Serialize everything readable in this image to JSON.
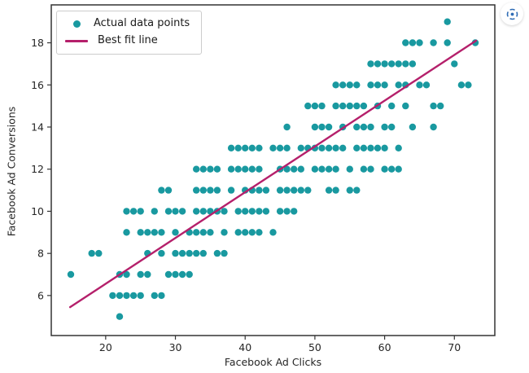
{
  "chart_data": {
    "type": "scatter",
    "title": "",
    "xlabel": "Facebook Ad Clicks",
    "ylabel": "Facebook Ad Conversions",
    "xlim": [
      12.2,
      75.8
    ],
    "ylim": [
      4.1,
      19.8
    ],
    "xticks": [
      20,
      30,
      40,
      50,
      60,
      70
    ],
    "yticks": [
      6,
      8,
      10,
      12,
      14,
      16,
      18
    ],
    "grid": false,
    "legend_position": "upper-left",
    "series": [
      {
        "name": "Actual data points",
        "type": "scatter",
        "color": "#1999A0",
        "points": [
          [
            22,
            5
          ],
          [
            21,
            6
          ],
          [
            22,
            6
          ],
          [
            23,
            6
          ],
          [
            24,
            6
          ],
          [
            25,
            6
          ],
          [
            27,
            6
          ],
          [
            28,
            6
          ],
          [
            15,
            7
          ],
          [
            22,
            7
          ],
          [
            23,
            7
          ],
          [
            25,
            7
          ],
          [
            26,
            7
          ],
          [
            29,
            7
          ],
          [
            30,
            7
          ],
          [
            31,
            7
          ],
          [
            32,
            7
          ],
          [
            18,
            8
          ],
          [
            19,
            8
          ],
          [
            26,
            8
          ],
          [
            28,
            8
          ],
          [
            30,
            8
          ],
          [
            31,
            8
          ],
          [
            32,
            8
          ],
          [
            33,
            8
          ],
          [
            34,
            8
          ],
          [
            36,
            8
          ],
          [
            37,
            8
          ],
          [
            23,
            9
          ],
          [
            25,
            9
          ],
          [
            26,
            9
          ],
          [
            27,
            9
          ],
          [
            28,
            9
          ],
          [
            30,
            9
          ],
          [
            32,
            9
          ],
          [
            33,
            9
          ],
          [
            34,
            9
          ],
          [
            35,
            9
          ],
          [
            37,
            9
          ],
          [
            39,
            9
          ],
          [
            40,
            9
          ],
          [
            41,
            9
          ],
          [
            42,
            9
          ],
          [
            44,
            9
          ],
          [
            23,
            10
          ],
          [
            24,
            10
          ],
          [
            25,
            10
          ],
          [
            27,
            10
          ],
          [
            29,
            10
          ],
          [
            30,
            10
          ],
          [
            31,
            10
          ],
          [
            33,
            10
          ],
          [
            34,
            10
          ],
          [
            35,
            10
          ],
          [
            36,
            10
          ],
          [
            37,
            10
          ],
          [
            39,
            10
          ],
          [
            40,
            10
          ],
          [
            41,
            10
          ],
          [
            42,
            10
          ],
          [
            43,
            10
          ],
          [
            45,
            10
          ],
          [
            46,
            10
          ],
          [
            47,
            10
          ],
          [
            28,
            11
          ],
          [
            29,
            11
          ],
          [
            33,
            11
          ],
          [
            34,
            11
          ],
          [
            35,
            11
          ],
          [
            36,
            11
          ],
          [
            38,
            11
          ],
          [
            40,
            11
          ],
          [
            41,
            11
          ],
          [
            42,
            11
          ],
          [
            43,
            11
          ],
          [
            45,
            11
          ],
          [
            46,
            11
          ],
          [
            47,
            11
          ],
          [
            48,
            11
          ],
          [
            49,
            11
          ],
          [
            52,
            11
          ],
          [
            53,
            11
          ],
          [
            55,
            11
          ],
          [
            56,
            11
          ],
          [
            33,
            12
          ],
          [
            34,
            12
          ],
          [
            35,
            12
          ],
          [
            36,
            12
          ],
          [
            38,
            12
          ],
          [
            39,
            12
          ],
          [
            40,
            12
          ],
          [
            41,
            12
          ],
          [
            42,
            12
          ],
          [
            45,
            12
          ],
          [
            46,
            12
          ],
          [
            47,
            12
          ],
          [
            48,
            12
          ],
          [
            50,
            12
          ],
          [
            51,
            12
          ],
          [
            52,
            12
          ],
          [
            53,
            12
          ],
          [
            55,
            12
          ],
          [
            57,
            12
          ],
          [
            58,
            12
          ],
          [
            60,
            12
          ],
          [
            61,
            12
          ],
          [
            62,
            12
          ],
          [
            38,
            13
          ],
          [
            39,
            13
          ],
          [
            40,
            13
          ],
          [
            41,
            13
          ],
          [
            42,
            13
          ],
          [
            44,
            13
          ],
          [
            45,
            13
          ],
          [
            46,
            13
          ],
          [
            48,
            13
          ],
          [
            49,
            13
          ],
          [
            50,
            13
          ],
          [
            51,
            13
          ],
          [
            52,
            13
          ],
          [
            53,
            13
          ],
          [
            54,
            13
          ],
          [
            56,
            13
          ],
          [
            57,
            13
          ],
          [
            58,
            13
          ],
          [
            59,
            13
          ],
          [
            60,
            13
          ],
          [
            62,
            13
          ],
          [
            46,
            14
          ],
          [
            50,
            14
          ],
          [
            51,
            14
          ],
          [
            52,
            14
          ],
          [
            54,
            14
          ],
          [
            56,
            14
          ],
          [
            57,
            14
          ],
          [
            58,
            14
          ],
          [
            60,
            14
          ],
          [
            61,
            14
          ],
          [
            64,
            14
          ],
          [
            67,
            14
          ],
          [
            49,
            15
          ],
          [
            50,
            15
          ],
          [
            51,
            15
          ],
          [
            53,
            15
          ],
          [
            54,
            15
          ],
          [
            55,
            15
          ],
          [
            56,
            15
          ],
          [
            57,
            15
          ],
          [
            59,
            15
          ],
          [
            61,
            15
          ],
          [
            63,
            15
          ],
          [
            67,
            15
          ],
          [
            68,
            15
          ],
          [
            53,
            16
          ],
          [
            54,
            16
          ],
          [
            55,
            16
          ],
          [
            56,
            16
          ],
          [
            58,
            16
          ],
          [
            59,
            16
          ],
          [
            60,
            16
          ],
          [
            62,
            16
          ],
          [
            63,
            16
          ],
          [
            65,
            16
          ],
          [
            66,
            16
          ],
          [
            71,
            16
          ],
          [
            72,
            16
          ],
          [
            58,
            17
          ],
          [
            59,
            17
          ],
          [
            60,
            17
          ],
          [
            61,
            17
          ],
          [
            62,
            17
          ],
          [
            63,
            17
          ],
          [
            64,
            17
          ],
          [
            70,
            17
          ],
          [
            63,
            18
          ],
          [
            64,
            18
          ],
          [
            65,
            18
          ],
          [
            67,
            18
          ],
          [
            69,
            18
          ],
          [
            73,
            18
          ],
          [
            69,
            19
          ]
        ]
      },
      {
        "name": "Best fit line",
        "type": "line",
        "color": "#B5206B",
        "x": [
          14.9,
          73.1
        ],
        "y": [
          5.45,
          18.1
        ]
      }
    ]
  },
  "colors": {
    "dot": "#1999A0",
    "fit_line": "#B5206B",
    "axis_frame": "#333333",
    "tick_label": "#262626",
    "capture_icon": "#2F6CB5"
  },
  "overlay": {
    "capture_button_icon": "screen-capture-icon"
  }
}
